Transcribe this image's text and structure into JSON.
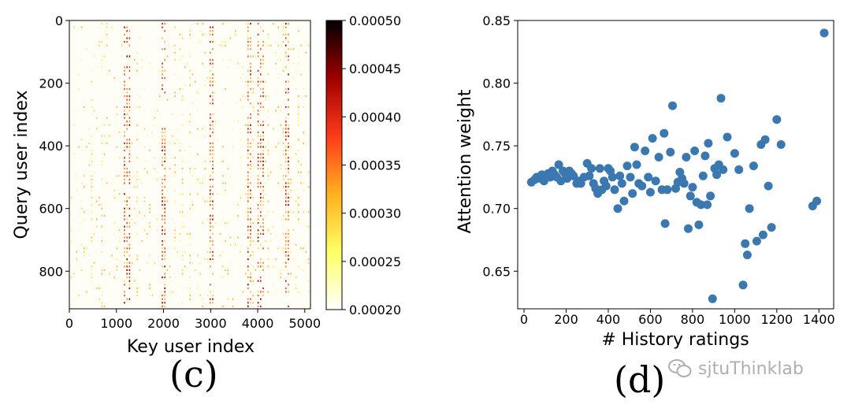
{
  "panels": {
    "c": {
      "caption": "(c)"
    },
    "d": {
      "caption": "(d)"
    }
  },
  "watermark": {
    "text": "sjtuThinklab",
    "icon": "wechat-icon"
  },
  "colors": {
    "scatter_point": "#3b78b0",
    "colormap_stops": [
      "#ffffff",
      "#ffff66",
      "#ffb01e",
      "#ff3a1a",
      "#a00000",
      "#000000"
    ]
  },
  "chart_data": [
    {
      "type": "heatmap",
      "title": "",
      "xlabel": "Key user index",
      "ylabel": "Query user index",
      "xlim": [
        0,
        5120
      ],
      "ylim": [
        0,
        920
      ],
      "xticks": [
        0,
        1000,
        2000,
        3000,
        4000,
        5000
      ],
      "yticks": [
        0,
        200,
        400,
        600,
        800
      ],
      "colorbar": {
        "range": [
          0.0002,
          0.0005
        ],
        "ticks": [
          "0.00020",
          "0.00025",
          "0.00030",
          "0.00035",
          "0.00040",
          "0.00045",
          "0.00050"
        ]
      },
      "dense_key_columns": [
        1200,
        2000,
        3000,
        3800,
        4050,
        4600
      ],
      "note": "sparse pixel-level pattern; vertical bands of high attention at dense key columns"
    },
    {
      "type": "scatter",
      "title": "",
      "xlabel": "# History ratings",
      "ylabel": "Attention weight",
      "xlim": [
        -30,
        1470
      ],
      "ylim": [
        0.62,
        0.85
      ],
      "xticks": [
        0,
        200,
        400,
        600,
        800,
        1000,
        1200,
        1400
      ],
      "yticks": [
        "0.65",
        "0.70",
        "0.75",
        "0.80",
        "0.85"
      ],
      "points": [
        [
          35,
          0.721
        ],
        [
          50,
          0.723
        ],
        [
          60,
          0.725
        ],
        [
          75,
          0.724
        ],
        [
          85,
          0.727
        ],
        [
          95,
          0.722
        ],
        [
          105,
          0.726
        ],
        [
          115,
          0.728
        ],
        [
          125,
          0.725
        ],
        [
          135,
          0.73
        ],
        [
          145,
          0.727
        ],
        [
          155,
          0.725
        ],
        [
          165,
          0.735
        ],
        [
          175,
          0.722
        ],
        [
          185,
          0.73
        ],
        [
          195,
          0.728
        ],
        [
          205,
          0.724
        ],
        [
          215,
          0.73
        ],
        [
          225,
          0.728
        ],
        [
          235,
          0.726
        ],
        [
          250,
          0.72
        ],
        [
          260,
          0.722
        ],
        [
          270,
          0.72
        ],
        [
          285,
          0.725
        ],
        [
          300,
          0.736
        ],
        [
          310,
          0.726
        ],
        [
          320,
          0.732
        ],
        [
          330,
          0.72
        ],
        [
          340,
          0.716
        ],
        [
          350,
          0.712
        ],
        [
          360,
          0.732
        ],
        [
          370,
          0.715
        ],
        [
          380,
          0.722
        ],
        [
          390,
          0.718
        ],
        [
          400,
          0.732
        ],
        [
          410,
          0.73
        ],
        [
          420,
          0.725
        ],
        [
          430,
          0.715
        ],
        [
          445,
          0.7
        ],
        [
          455,
          0.726
        ],
        [
          465,
          0.72
        ],
        [
          475,
          0.706
        ],
        [
          490,
          0.734
        ],
        [
          505,
          0.725
        ],
        [
          515,
          0.712
        ],
        [
          525,
          0.749
        ],
        [
          535,
          0.735
        ],
        [
          545,
          0.72
        ],
        [
          560,
          0.718
        ],
        [
          575,
          0.746
        ],
        [
          590,
          0.725
        ],
        [
          600,
          0.713
        ],
        [
          610,
          0.756
        ],
        [
          625,
          0.722
        ],
        [
          640,
          0.741
        ],
        [
          655,
          0.715
        ],
        [
          665,
          0.76
        ],
        [
          670,
          0.688
        ],
        [
          680,
          0.715
        ],
        [
          695,
          0.745
        ],
        [
          705,
          0.782
        ],
        [
          720,
          0.716
        ],
        [
          730,
          0.721
        ],
        [
          740,
          0.729
        ],
        [
          750,
          0.724
        ],
        [
          760,
          0.72
        ],
        [
          770,
          0.741
        ],
        [
          780,
          0.684
        ],
        [
          790,
          0.71
        ],
        [
          800,
          0.717
        ],
        [
          810,
          0.746
        ],
        [
          820,
          0.705
        ],
        [
          830,
          0.687
        ],
        [
          840,
          0.703
        ],
        [
          850,
          0.726
        ],
        [
          860,
          0.742
        ],
        [
          870,
          0.703
        ],
        [
          875,
          0.752
        ],
        [
          885,
          0.71
        ],
        [
          895,
          0.628
        ],
        [
          905,
          0.732
        ],
        [
          915,
          0.727
        ],
        [
          925,
          0.735
        ],
        [
          935,
          0.788
        ],
        [
          945,
          0.731
        ],
        [
          965,
          0.757
        ],
        [
          1000,
          0.744
        ],
        [
          1020,
          0.731
        ],
        [
          1040,
          0.639
        ],
        [
          1050,
          0.672
        ],
        [
          1060,
          0.663
        ],
        [
          1070,
          0.7
        ],
        [
          1090,
          0.734
        ],
        [
          1105,
          0.674
        ],
        [
          1125,
          0.751
        ],
        [
          1135,
          0.679
        ],
        [
          1145,
          0.755
        ],
        [
          1160,
          0.718
        ],
        [
          1175,
          0.685
        ],
        [
          1200,
          0.771
        ],
        [
          1220,
          0.751
        ],
        [
          1370,
          0.702
        ],
        [
          1390,
          0.706
        ],
        [
          1425,
          0.84
        ]
      ]
    }
  ]
}
